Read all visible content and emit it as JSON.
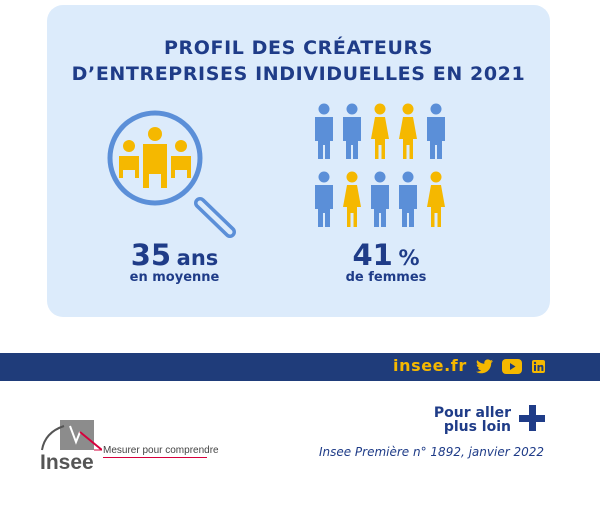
{
  "title": {
    "line1": "PROFIL DES CRÉATEURS",
    "line2": "D’ENTREPRISES INDIVIDUELLES EN 2021"
  },
  "age": {
    "value": "35",
    "unit": "ans",
    "caption": "en moyenne"
  },
  "women": {
    "value": "41",
    "unit": "%",
    "caption": "de femmes",
    "pictogram_row1": [
      "man",
      "man",
      "woman",
      "woman",
      "man"
    ],
    "pictogram_row2": [
      "man",
      "woman",
      "man",
      "man",
      "woman"
    ]
  },
  "footer": {
    "site": "insee.fr",
    "social_icons": [
      "twitter-icon",
      "youtube-icon",
      "linkedin-icon"
    ],
    "more_line1": "Pour aller",
    "more_line2": "plus loin",
    "reference": "Insee Première n° 1892, janvier 2022",
    "logo_word": "Insee",
    "tagline": "Mesurer pour comprendre"
  },
  "colors": {
    "navy": "#1f3c88",
    "blue": "#5b8fd8",
    "yellow": "#f5b800",
    "card_bg": "#dcebfb",
    "band": "#1f3c7a"
  }
}
